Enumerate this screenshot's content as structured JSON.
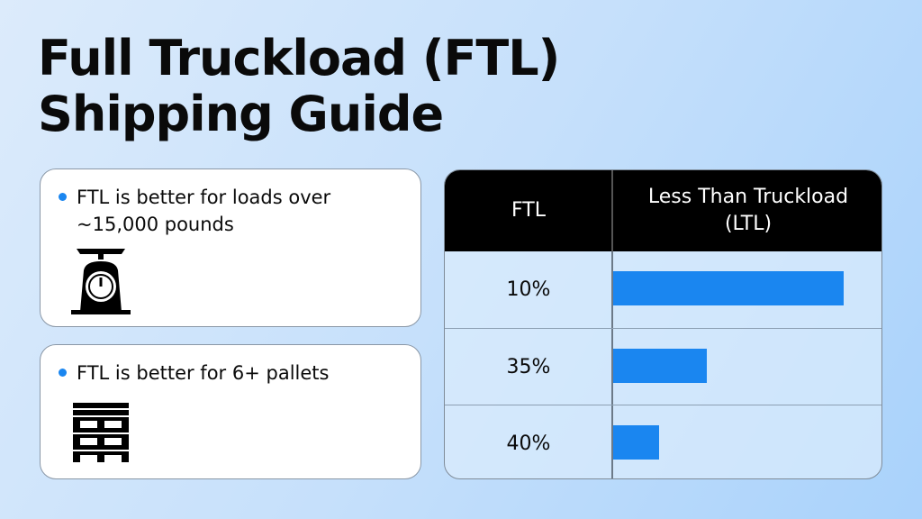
{
  "header": {
    "title_lines": [
      "Full Truckload (FTL)",
      "Shipping Guide"
    ]
  },
  "cards": [
    {
      "text": "FTL is better for loads over ~15,000 pounds"
    },
    {
      "text": "FTL is better for 6+ pallets"
    }
  ],
  "table": {
    "columns": [
      "FTL",
      "Less Than Truckload (LTL)"
    ],
    "rows": [
      {
        "ftl": "10%",
        "ltl_bar": 86
      },
      {
        "ftl": "35%",
        "ltl_bar": 35
      },
      {
        "ftl": "40%",
        "ltl_bar": 17
      }
    ],
    "xlim": [
      0,
      100
    ],
    "bar_color": "#1a86f0"
  }
}
